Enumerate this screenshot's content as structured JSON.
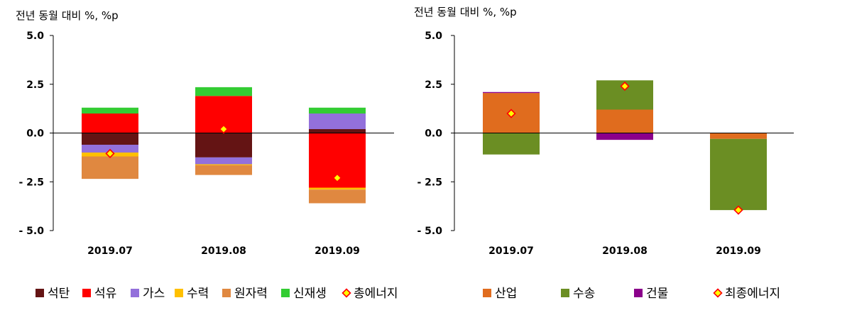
{
  "chart_data": [
    {
      "type": "bar",
      "stacked": true,
      "title": "",
      "ylabel": "전년 동월 대비 %, %p",
      "xlabel": "",
      "categories": [
        "2019.07",
        "2019.08",
        "2019.09"
      ],
      "ylim": [
        -5.0,
        5.0
      ],
      "yticks": [
        "5.0",
        "2.5",
        "0.0",
        "- 2.5",
        "- 5.0"
      ],
      "ytick_values": [
        5.0,
        2.5,
        0.0,
        -2.5,
        -5.0
      ],
      "grid": false,
      "legend_position": "bottom",
      "series": [
        {
          "name": "석탄",
          "color": "#641414",
          "values": [
            -0.6,
            -1.25,
            0.2
          ]
        },
        {
          "name": "석유",
          "color": "#ff0000",
          "values": [
            1.0,
            1.9,
            -2.8
          ]
        },
        {
          "name": "가스",
          "color": "#9370db",
          "values": [
            -0.4,
            -0.35,
            0.8
          ]
        },
        {
          "name": "수력",
          "color": "#ffc000",
          "values": [
            -0.2,
            -0.05,
            -0.1
          ]
        },
        {
          "name": "원자력",
          "color": "#e08840",
          "values": [
            -1.15,
            -0.5,
            -0.7
          ]
        },
        {
          "name": "신재생",
          "color": "#33cc33",
          "values": [
            0.3,
            0.45,
            0.3
          ]
        }
      ],
      "markers": {
        "name": "총에너지",
        "values": [
          -1.05,
          0.2,
          -2.3
        ]
      }
    },
    {
      "type": "bar",
      "stacked": true,
      "title": "",
      "ylabel": "전년 동월 대비 %, %p",
      "xlabel": "",
      "categories": [
        "2019.07",
        "2019.08",
        "2019.09"
      ],
      "ylim": [
        -5.0,
        5.0
      ],
      "yticks": [
        "5.0",
        "2.5",
        "0.0",
        "- 2.5",
        "- 5.0"
      ],
      "ytick_values": [
        5.0,
        2.5,
        0.0,
        -2.5,
        -5.0
      ],
      "grid": false,
      "legend_position": "bottom",
      "series": [
        {
          "name": "산업",
          "color": "#e06c1e",
          "values": [
            2.05,
            1.2,
            -0.3
          ]
        },
        {
          "name": "수송",
          "color": "#6b8e23",
          "values": [
            -1.1,
            1.5,
            -3.65
          ]
        },
        {
          "name": "건물",
          "color": "#8b008b",
          "values": [
            0.05,
            -0.35,
            0.0
          ]
        }
      ],
      "markers": {
        "name": "최종에너지",
        "values": [
          1.0,
          2.4,
          -3.95
        ]
      }
    }
  ]
}
